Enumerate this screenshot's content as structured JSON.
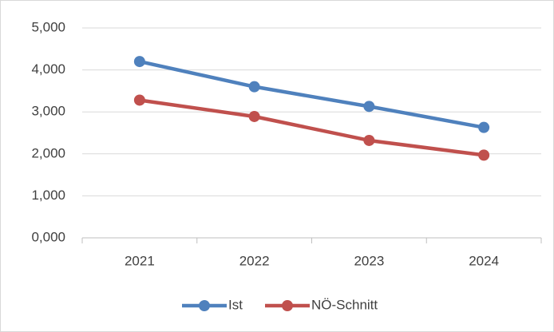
{
  "chart_data": {
    "type": "line",
    "categories": [
      "2021",
      "2022",
      "2023",
      "2024"
    ],
    "series": [
      {
        "name": "Ist",
        "color": "#4f81bd",
        "values": [
          4.2,
          3.6,
          3.13,
          2.63
        ]
      },
      {
        "name": "NÖ-Schnitt",
        "color": "#c0504d",
        "values": [
          3.28,
          2.89,
          2.32,
          1.97
        ]
      }
    ],
    "ylim": [
      0,
      5
    ],
    "yticks": [
      {
        "value": 0,
        "label": "0,000"
      },
      {
        "value": 1,
        "label": "1,000"
      },
      {
        "value": 2,
        "label": "2,000"
      },
      {
        "value": 3,
        "label": "3,000"
      },
      {
        "value": 4,
        "label": "4,000"
      },
      {
        "value": 5,
        "label": "5,000"
      }
    ],
    "grid": true,
    "legend": "bottom"
  }
}
